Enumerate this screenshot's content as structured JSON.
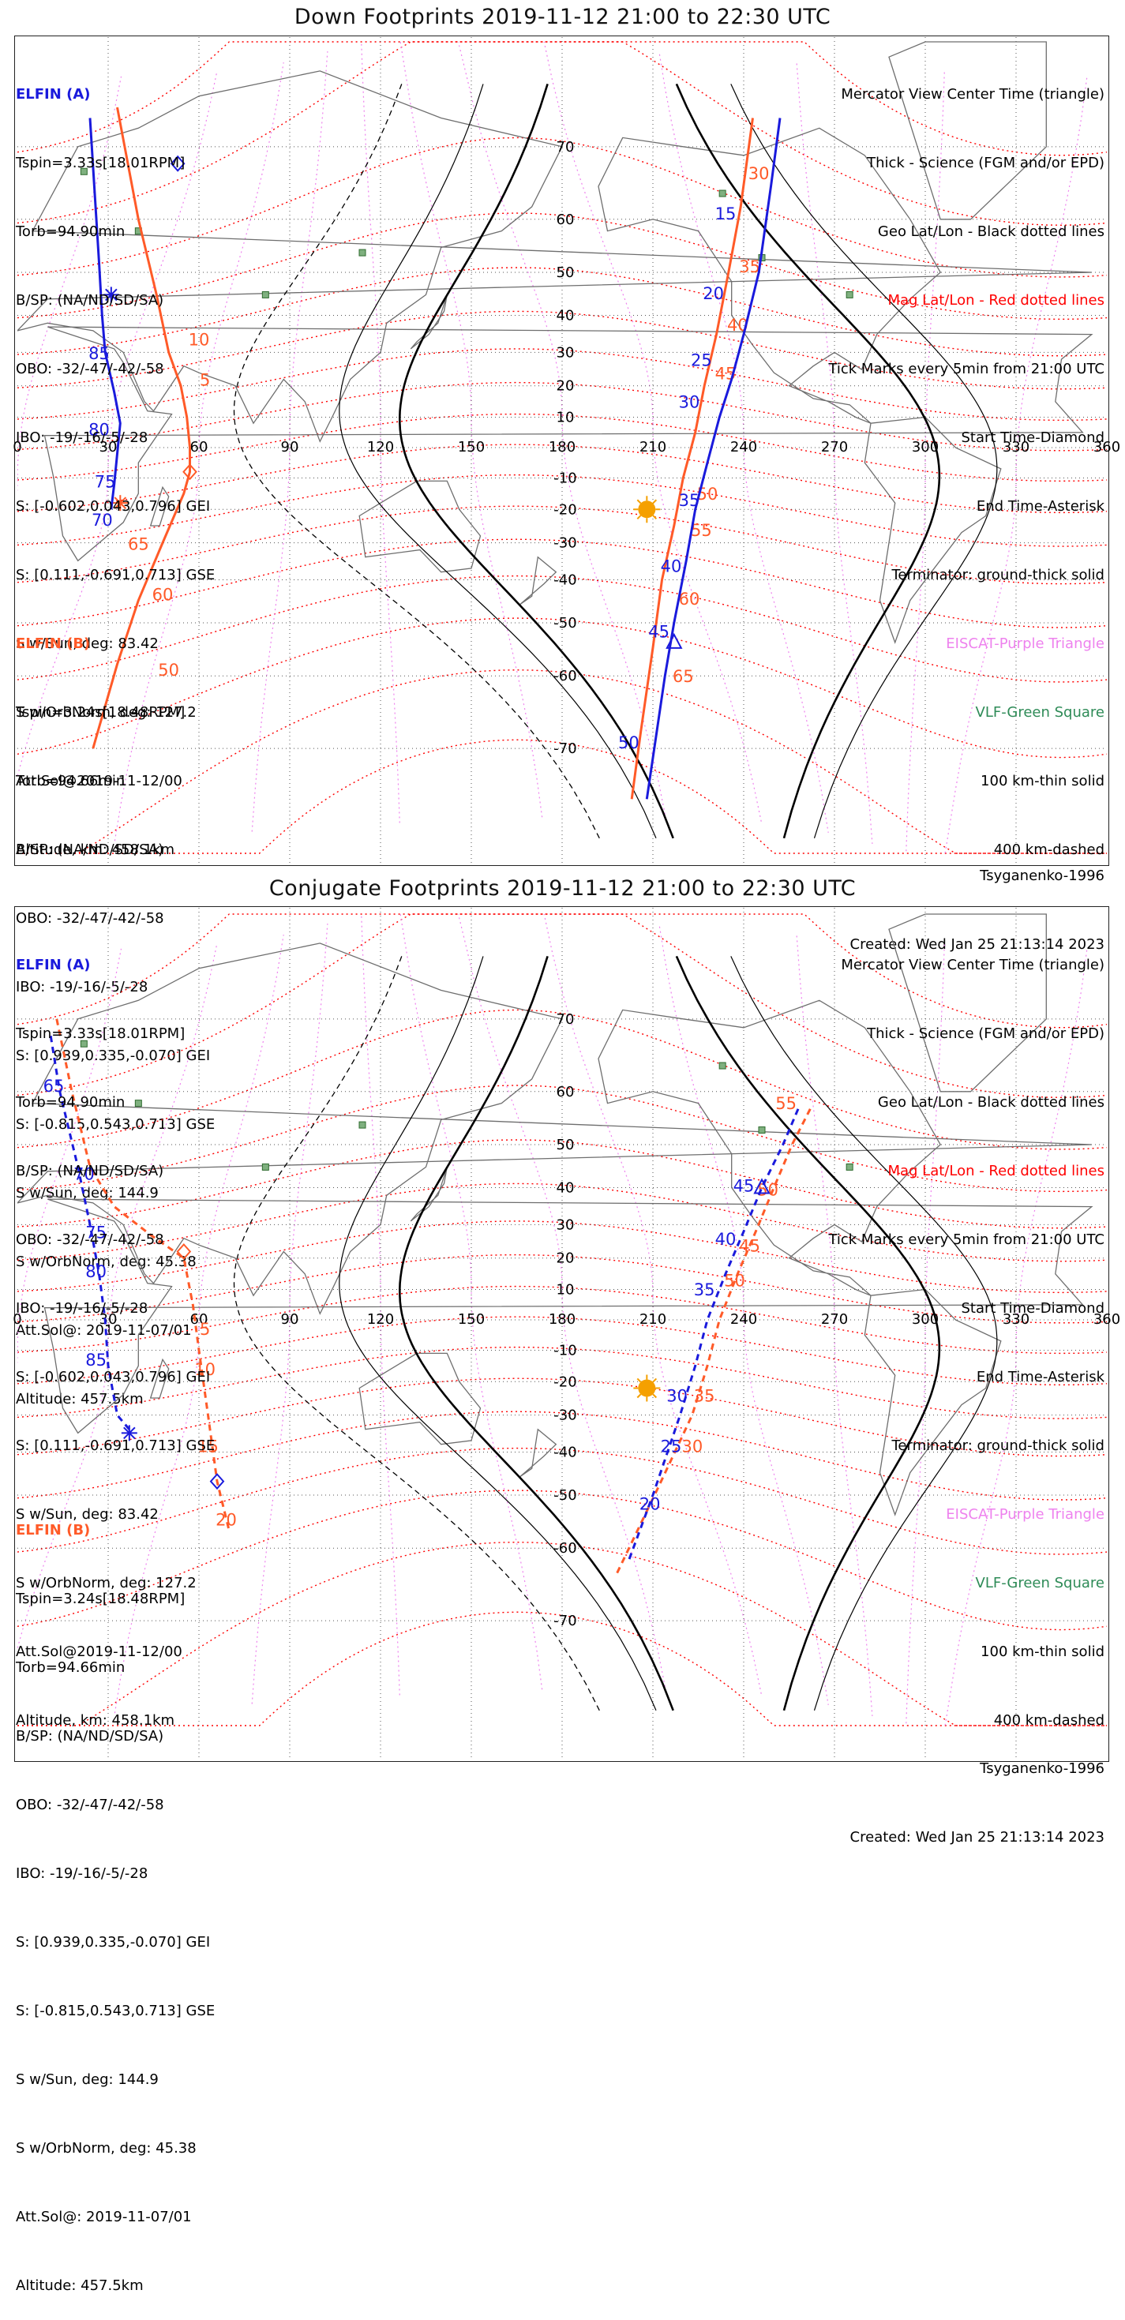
{
  "colors": {
    "elfin_a": "#1a1adc",
    "elfin_b": "#ff5a28",
    "mag_grid": "#ff0000",
    "eiscat": "#ee82ee",
    "vlf": "#2e8b57",
    "sun": "#f5a000",
    "coast": "#6e6e6e"
  },
  "common": {
    "lon_ticks": [
      "0",
      "30",
      "60",
      "90",
      "120",
      "150",
      "180",
      "210",
      "240",
      "270",
      "300",
      "330",
      "360"
    ],
    "lat_ticks": [
      "70",
      "60",
      "50",
      "40",
      "30",
      "20",
      "10",
      "-10",
      "-20",
      "-30",
      "-40",
      "-50",
      "-60",
      "-70"
    ],
    "legend": [
      "Mercator View Center Time (triangle)",
      "Thick - Science (FGM and/or EPD)",
      "Geo Lat/Lon - Black dotted lines",
      "Mag Lat/Lon - Red dotted lines",
      "Tick Marks every 5min from 21:00 UTC",
      "Start Time-Diamond",
      "End Time-Asterisk",
      "Terminator: ground-thick solid",
      "EISCAT-Purple Triangle",
      "VLF-Green Square",
      "100 km-thin solid",
      "400 km-dashed"
    ],
    "model": "Tsyganenko-1996",
    "created": "Created: Wed Jan 25 21:13:14 2023",
    "elfin_a": {
      "header": "ELFIN (A)",
      "lines": [
        "Tspin=3.33s[18.01RPM]",
        "Torb=94.90min",
        "B/SP: (NA/ND/SD/SA)",
        "OBO: -32/-47/-42/-58",
        "IBO: -19/-16/-5/-28",
        "S: [-0.602,0.043,0.796] GEI",
        "S: [0.111,-0.691,0.713] GSE",
        "S w/Sun, deg: 83.42",
        "S w/OrbNorm, deg: 127.2",
        "Att.Sol@2019-11-12/00",
        "Altitude, km: 458.1km"
      ]
    },
    "elfin_b": {
      "header": "ELFIN (B)",
      "lines": [
        "Tspin=3.24s[18.48RPM]",
        "Torb=94.66min",
        "B/SP: (NA/ND/SD/SA)",
        "OBO: -32/-47/-42/-58",
        "IBO: -19/-16/-5/-28",
        "S: [0.939,0.335,-0.070] GEI",
        "S: [-0.815,0.543,0.713] GSE",
        "S w/Sun, deg: 144.9",
        "S w/OrbNorm, deg: 45.38",
        "Att.Sol@: 2019-11-07/01",
        "Altitude: 457.5km"
      ]
    }
  },
  "panels": [
    {
      "title": "Down Footprints 2019-11-12 21:00 to 22:30 UTC",
      "tracks": {
        "blue_left": {
          "points": [
            [
              24,
              73
            ],
            [
              27,
              52
            ],
            [
              28,
              40
            ],
            [
              29,
              30
            ],
            [
              32,
              18
            ],
            [
              34,
              8
            ],
            [
              33,
              -2
            ],
            [
              32,
              -12
            ],
            [
              31,
              -20
            ]
          ],
          "ticks": [
            {
              "t": "85",
              "lon": 27,
              "lat": 28
            },
            {
              "t": "80",
              "lon": 27,
              "lat": 4
            },
            {
              "t": "75",
              "lon": 29,
              "lat": -13
            },
            {
              "t": "70",
              "lon": 28,
              "lat": -25
            }
          ],
          "start_diamond": [
            53,
            68
          ],
          "end_asterisk": [
            31,
            45
          ]
        },
        "orange_left": {
          "points": [
            [
              33,
              74
            ],
            [
              40,
              60
            ],
            [
              46,
              45
            ],
            [
              50,
              30
            ],
            [
              54,
              20
            ],
            [
              56,
              10
            ],
            [
              57,
              0
            ],
            [
              57,
              -8
            ],
            [
              55,
              -15
            ],
            [
              48,
              -30
            ],
            [
              40,
              -45
            ],
            [
              33,
              -58
            ],
            [
              25,
              -70
            ]
          ],
          "ticks": [
            {
              "t": "10",
              "lon": 60,
              "lat": 32
            },
            {
              "t": "5",
              "lon": 62,
              "lat": 20
            },
            {
              "t": "65",
              "lon": 40,
              "lat": -32
            },
            {
              "t": "60",
              "lon": 48,
              "lat": -45
            },
            {
              "t": "50",
              "lon": 50,
              "lat": -60
            }
          ],
          "start_diamond": [
            57,
            -8
          ],
          "end_asterisk": [
            34,
            -18
          ]
        },
        "blue_right": {
          "points": [
            [
              252,
              73
            ],
            [
              249,
              65
            ],
            [
              245,
              50
            ],
            [
              240,
              35
            ],
            [
              236,
              22
            ],
            [
              232,
              10
            ],
            [
              228,
              -5
            ],
            [
              224,
              -20
            ],
            [
              221,
              -35
            ],
            [
              217,
              -50
            ],
            [
              214,
              -60
            ],
            [
              208,
              -75
            ]
          ],
          "ticks": [
            {
              "t": "15",
              "lon": 234,
              "lat": 60
            },
            {
              "t": "20",
              "lon": 230,
              "lat": 44
            },
            {
              "t": "25",
              "lon": 226,
              "lat": 26
            },
            {
              "t": "30",
              "lon": 222,
              "lat": 13
            },
            {
              "t": "35",
              "lon": 222,
              "lat": -19
            },
            {
              "t": "40",
              "lon": 216,
              "lat": -38
            },
            {
              "t": "45",
              "lon": 212,
              "lat": -53
            },
            {
              "t": "50",
              "lon": 202,
              "lat": -70
            }
          ],
          "center_triangle": [
            217,
            -54
          ]
        },
        "orange_right": {
          "points": [
            [
              243,
              73
            ],
            [
              239,
              62
            ],
            [
              235,
              50
            ],
            [
              231,
              35
            ],
            [
              227,
              20
            ],
            [
              224,
              5
            ],
            [
              220,
              -10
            ],
            [
              217,
              -25
            ],
            [
              213,
              -40
            ],
            [
              210,
              -55
            ],
            [
              206,
              -68
            ],
            [
              203,
              -75
            ]
          ],
          "ticks": [
            {
              "t": "30",
              "lon": 245,
              "lat": 66
            },
            {
              "t": "35",
              "lon": 242,
              "lat": 50
            },
            {
              "t": "40",
              "lon": 238,
              "lat": 36
            },
            {
              "t": "45",
              "lon": 234,
              "lat": 22
            },
            {
              "t": "50",
              "lon": 228,
              "lat": -17
            },
            {
              "t": "55",
              "lon": 226,
              "lat": -28
            },
            {
              "t": "60",
              "lon": 222,
              "lat": -46
            },
            {
              "t": "65",
              "lon": 220,
              "lat": -61
            }
          ]
        }
      },
      "sun": [
        208,
        -20
      ],
      "dashed_style": false
    },
    {
      "title": "Conjugate Footprints 2019-11-12 21:00 to 22:30 UTC",
      "tracks": {
        "blue_left": {
          "points": [
            [
              11,
              68
            ],
            [
              14,
              60
            ],
            [
              20,
              45
            ],
            [
              24,
              30
            ],
            [
              27,
              15
            ],
            [
              29,
              0
            ],
            [
              30,
              -15
            ],
            [
              33,
              -30
            ],
            [
              38,
              -35
            ]
          ],
          "ticks": [
            {
              "t": "65",
              "lon": 12,
              "lat": 60
            },
            {
              "t": "70",
              "lon": 22,
              "lat": 42
            },
            {
              "t": "75",
              "lon": 26,
              "lat": 26
            },
            {
              "t": "80",
              "lon": 26,
              "lat": 14
            },
            {
              "t": "85",
              "lon": 26,
              "lat": -15
            }
          ],
          "start_diamond": [
            66,
            -47
          ],
          "end_asterisk": [
            37,
            -35
          ]
        },
        "orange_left": {
          "points": [
            [
              13,
              70
            ],
            [
              18,
              60
            ],
            [
              24,
              45
            ],
            [
              32,
              35
            ],
            [
              44,
              27
            ],
            [
              55,
              20
            ],
            [
              58,
              5
            ],
            [
              60,
              -10
            ],
            [
              63,
              -30
            ],
            [
              66,
              -47
            ],
            [
              70,
              -57
            ]
          ],
          "ticks": [
            {
              "t": "5",
              "lon": 62,
              "lat": -5
            },
            {
              "t": "10",
              "lon": 62,
              "lat": -18
            },
            {
              "t": "15",
              "lon": 63,
              "lat": -40
            },
            {
              "t": "20",
              "lon": 69,
              "lat": -56
            }
          ],
          "start_diamond": [
            55,
            22
          ]
        },
        "blue_right": {
          "points": [
            [
              258,
              57
            ],
            [
              253,
              50
            ],
            [
              246,
              40
            ],
            [
              240,
              28
            ],
            [
              234,
              15
            ],
            [
              228,
              0
            ],
            [
              224,
              -15
            ],
            [
              219,
              -30
            ],
            [
              210,
              -50
            ],
            [
              202,
              -62
            ]
          ],
          "ticks": [
            {
              "t": "45",
              "lon": 240,
              "lat": 39
            },
            {
              "t": "40",
              "lon": 234,
              "lat": 24
            },
            {
              "t": "35",
              "lon": 227,
              "lat": 8
            },
            {
              "t": "30",
              "lon": 218,
              "lat": -26
            },
            {
              "t": "25",
              "lon": 216,
              "lat": -40
            },
            {
              "t": "20",
              "lon": 209,
              "lat": -53
            }
          ],
          "center_triangle": [
            246,
            40
          ]
        },
        "orange_right": {
          "points": [
            [
              262,
              57
            ],
            [
              256,
              50
            ],
            [
              250,
              40
            ],
            [
              244,
              28
            ],
            [
              238,
              15
            ],
            [
              232,
              0
            ],
            [
              228,
              -15
            ],
            [
              223,
              -30
            ],
            [
              212,
              -48
            ],
            [
              198,
              -64
            ]
          ],
          "ticks": [
            {
              "t": "55",
              "lon": 254,
              "lat": 57
            },
            {
              "t": "50",
              "lon": 248,
              "lat": 38
            },
            {
              "t": "45",
              "lon": 242,
              "lat": 22
            },
            {
              "t": "50",
              "lon": 237,
              "lat": 11
            },
            {
              "t": "35",
              "lon": 227,
              "lat": -26
            },
            {
              "t": "30",
              "lon": 223,
              "lat": -40
            }
          ]
        }
      },
      "sun": [
        208,
        -22
      ],
      "dashed_style": true
    }
  ]
}
